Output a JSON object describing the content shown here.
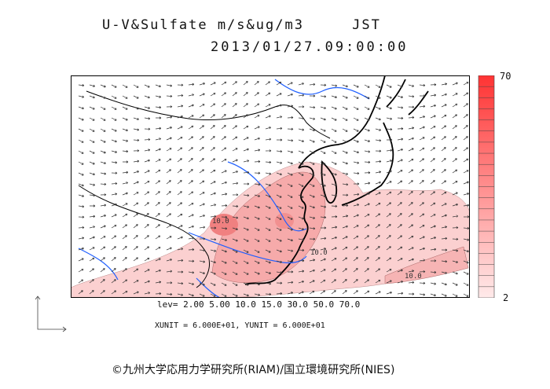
{
  "title": {
    "variable": "U-V&Sulfate m/s&ug/m3",
    "timezone": "JST",
    "datetime": "2013/01/27.09:00:00"
  },
  "colorbar": {
    "max_label": "70",
    "min_label": "2",
    "low_color": "#ffeaea",
    "high_color": "#ff3333"
  },
  "map_labels": {
    "contour_a": "10.0",
    "contour_b": "10.0",
    "contour_c": "10.0"
  },
  "footer": {
    "levels": "lev= 2.00 5.00 10.0 15.0 30.0 50.0 70.0",
    "units": "XUNIT = 6.000E+01, YUNIT = 6.000E+01",
    "credit": "©九州大学応用力学研究所(RIAM)/国立環境研究所(NIES)"
  },
  "colors": {
    "frame": "#000000",
    "coast": "#000000",
    "rivers": "#1f5fff",
    "wind": "#333333",
    "plume": "#f7a6a6"
  }
}
